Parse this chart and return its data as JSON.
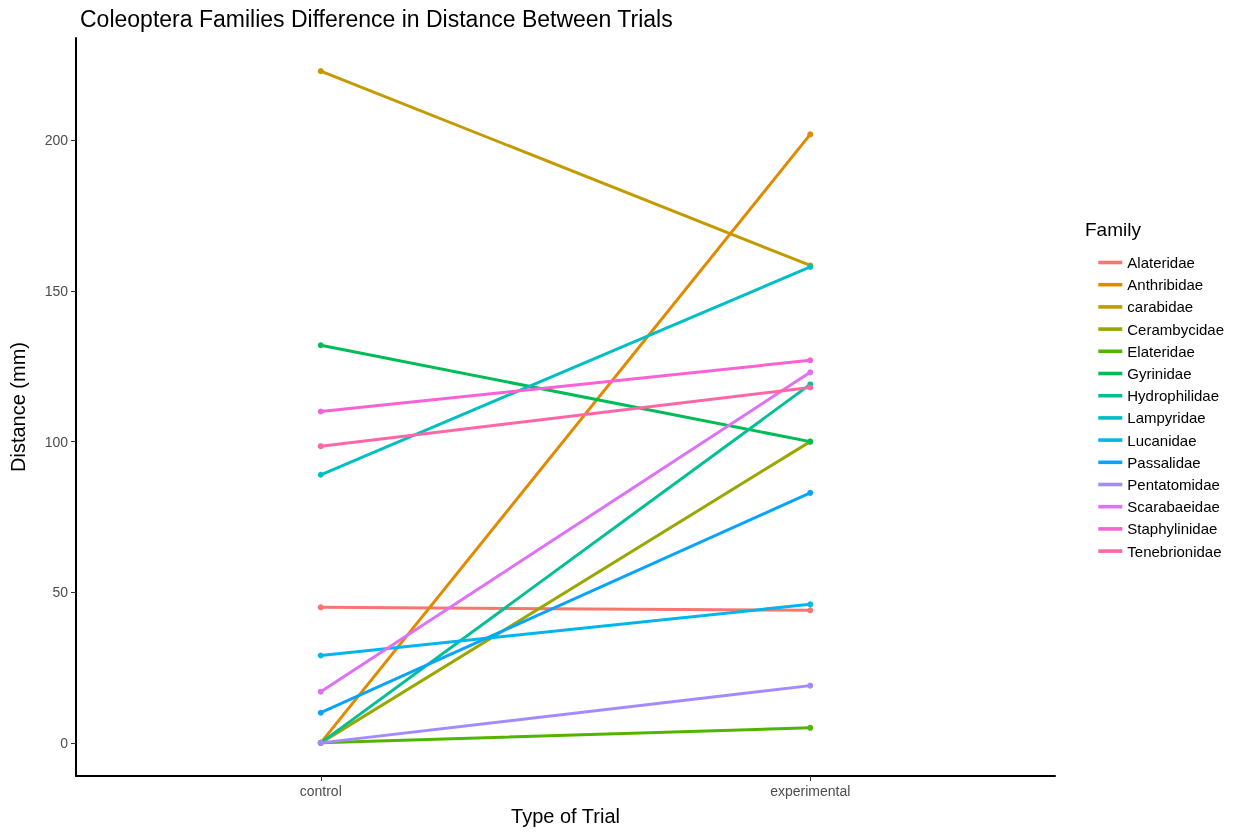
{
  "chart_data": {
    "type": "line",
    "title": "Coleoptera Families Difference in Distance Between Trials",
    "xlabel": "Type of Trial",
    "ylabel": "Distance (mm)",
    "legend_title": "Family",
    "categories": [
      "control",
      "experimental"
    ],
    "series": [
      {
        "name": "Alateridae",
        "color": "#f8766d",
        "values": [
          45,
          44
        ]
      },
      {
        "name": "Anthribidae",
        "color": "#e38900",
        "values": [
          0,
          202
        ]
      },
      {
        "name": "carabidae",
        "color": "#c49a00",
        "values": [
          223,
          158.5
        ]
      },
      {
        "name": "Cerambycidae",
        "color": "#99a800",
        "values": [
          0,
          100
        ]
      },
      {
        "name": "Elateridae",
        "color": "#53b400",
        "values": [
          0,
          5
        ]
      },
      {
        "name": "Gyrinidae",
        "color": "#00bc56",
        "values": [
          132,
          100
        ]
      },
      {
        "name": "Hydrophilidae",
        "color": "#00c094",
        "values": [
          0,
          119
        ]
      },
      {
        "name": "Lampyridae",
        "color": "#00bfc4",
        "values": [
          89,
          158
        ]
      },
      {
        "name": "Lucanidae",
        "color": "#00b6eb",
        "values": [
          29,
          46
        ]
      },
      {
        "name": "Passalidae",
        "color": "#06a4ff",
        "values": [
          10,
          83
        ]
      },
      {
        "name": "Pentatomidae",
        "color": "#a58aff",
        "values": [
          0,
          19
        ]
      },
      {
        "name": "Scarabaeidae",
        "color": "#df70f8",
        "values": [
          17,
          123
        ]
      },
      {
        "name": "Staphylinidae",
        "color": "#fb61d7",
        "values": [
          110,
          127
        ]
      },
      {
        "name": "Tenebrionidae",
        "color": "#ff66a8",
        "values": [
          98.5,
          118
        ]
      }
    ],
    "ylim": [
      -11,
      234
    ],
    "yticks": [
      0,
      50,
      100,
      150,
      200
    ],
    "grid": false,
    "legend": "right",
    "marker": "circle",
    "line_style": "solid"
  }
}
